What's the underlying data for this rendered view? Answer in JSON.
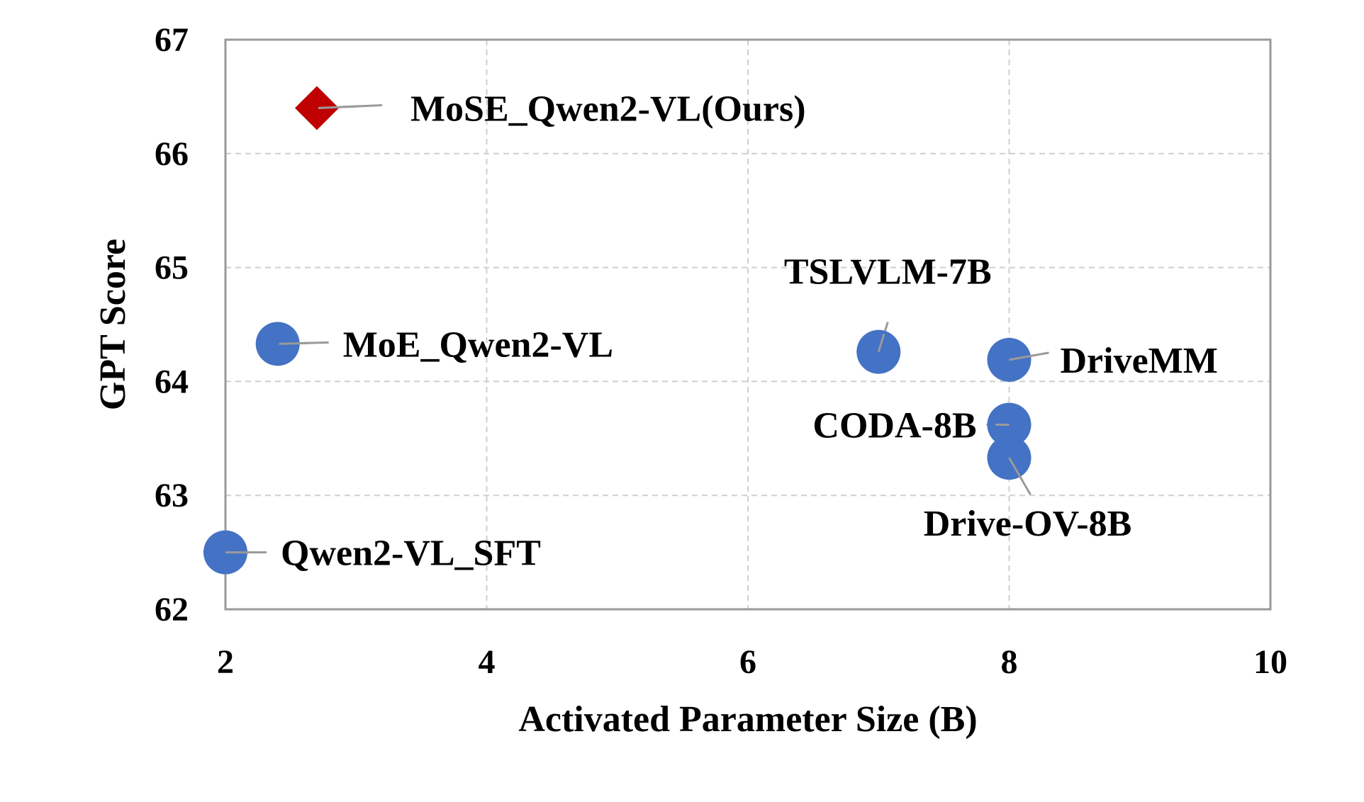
{
  "chart_data": {
    "type": "scatter",
    "title": "",
    "xlabel": "Activated Parameter Size (B)",
    "ylabel": "GPT Score",
    "xlim": [
      2,
      10
    ],
    "ylim": [
      62,
      67
    ],
    "x_ticks": [
      "2",
      "4",
      "6",
      "8",
      "10"
    ],
    "y_ticks": [
      "62",
      "63",
      "64",
      "65",
      "66",
      "67"
    ],
    "grid": true,
    "colors": {
      "ours": "#c00000",
      "baseline": "#4472c4",
      "grid": "#cfcfcf",
      "frame": "#9a9a9a"
    },
    "points": [
      {
        "label": "MoSE_Qwen2-VL(Ours)",
        "x": 2.7,
        "y": 66.4,
        "marker": "diamond",
        "color": "#c00000"
      },
      {
        "label": "MoE_Qwen2-VL",
        "x": 2.4,
        "y": 64.33,
        "marker": "circle",
        "color": "#4472c4"
      },
      {
        "label": "TSLVLM-7B",
        "x": 7.0,
        "y": 64.26,
        "marker": "circle",
        "color": "#4472c4"
      },
      {
        "label": "DriveMM",
        "x": 8.0,
        "y": 64.19,
        "marker": "circle",
        "color": "#4472c4"
      },
      {
        "label": "CODA-8B",
        "x": 8.0,
        "y": 63.62,
        "marker": "circle",
        "color": "#4472c4"
      },
      {
        "label": "Drive-OV-8B",
        "x": 8.0,
        "y": 63.33,
        "marker": "circle",
        "color": "#4472c4"
      },
      {
        "label": "Qwen2-VL_SFT",
        "x": 2.0,
        "y": 62.5,
        "marker": "circle",
        "color": "#4472c4"
      }
    ]
  }
}
